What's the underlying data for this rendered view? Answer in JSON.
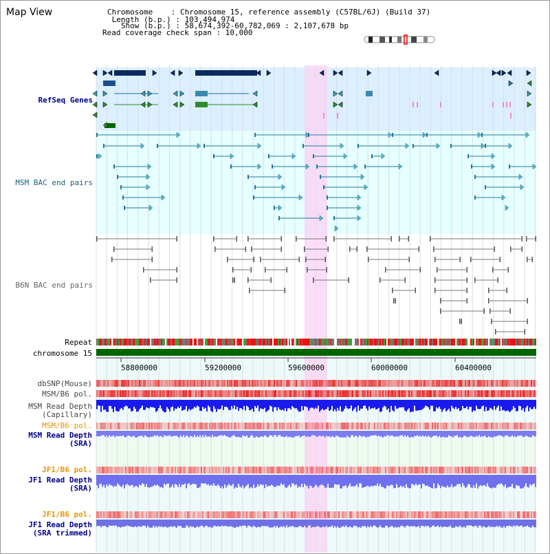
{
  "header": {
    "title": "Map View",
    "line1": "Chromosome    : Chromosome 15, reference assembly (C57BL/6J) (Build 37)",
    "line2": " Length (b.p.) : 103,494,974",
    "line3": "   Show (b.p.) : 58,674,392-60,782,069 : 2,107,678 bp",
    "line4": "Read coverage check span : 10,000"
  },
  "tracks": {
    "refseq": "RefSeq Genes",
    "msm_bac": "MSM BAC end pairs",
    "b6n_bac": "B6N BAC end pairs",
    "repeat": "Repeat",
    "chromosome": "chromosome 15",
    "dbsnp": "dbSNP(Mouse)",
    "msm_b6_pol_1": "MSM/B6 pol.",
    "msm_depth_cap_1": "MSM Read Depth",
    "msm_depth_cap_2": "(Capillary)",
    "msm_b6_pol_2": "MSM/B6 pol.",
    "msm_depth_sra_1": "MSM Read Depth",
    "msm_depth_sra_2": "(SRA)",
    "jf1_b6_pol_1": "JF1/B6 pol.",
    "jf1_depth_sra_1": "JF1 Read Depth",
    "jf1_depth_sra_2": "(SRA)",
    "jf1_b6_pol_2": "JF1/B6 pol.",
    "jf1_depth_trim_1": "JF1 Read Depth",
    "jf1_depth_trim_2": "(SRA trimmed)"
  },
  "axis": {
    "ticks": [
      "58800000",
      "59200000",
      "59600000",
      "60000000",
      "60400000"
    ]
  },
  "colors": {
    "refseq_bg": "#dcefff",
    "bac_bg": "#e6ffff",
    "highlight": "#f9d4f5",
    "chromosome": "#006600",
    "gene_dark": "#0a2a5e",
    "gene_green": "#2e8b2e",
    "bac_line": "#227799",
    "b6n_line": "#777777",
    "pol_red": "#ee2222",
    "depth_blue": "#2222ee",
    "depth_light": "#8888ff"
  }
}
